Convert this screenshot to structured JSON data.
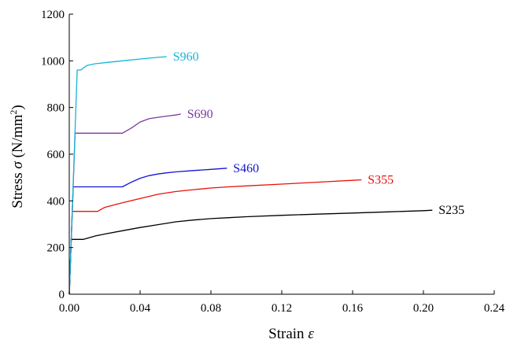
{
  "chart_data": {
    "type": "line",
    "title": "",
    "xlabel": "Strain",
    "xlabel_symbol": "ε",
    "ylabel": "Stress",
    "ylabel_symbol": "σ",
    "ylabel_unit_prefix": "(N/mm",
    "ylabel_unit_sup": "2",
    "ylabel_unit_suffix": ")",
    "xlim": [
      0,
      0.24
    ],
    "ylim": [
      0,
      1200
    ],
    "x_ticks": [
      "0.00",
      "0.04",
      "0.08",
      "0.12",
      "0.16",
      "0.20",
      "0.24"
    ],
    "y_ticks": [
      "0",
      "200",
      "400",
      "600",
      "800",
      "1000",
      "1200"
    ],
    "grid": false,
    "legend": "labels at end of curves",
    "series": [
      {
        "name": "S235",
        "color": "#000000",
        "x": [
          0,
          0.0011,
          0.002,
          0.008,
          0.015,
          0.02,
          0.03,
          0.04,
          0.05,
          0.06,
          0.07,
          0.08,
          0.09,
          0.1,
          0.12,
          0.14,
          0.16,
          0.18,
          0.2,
          0.205
        ],
        "y": [
          0,
          235,
          235,
          235,
          250,
          258,
          272,
          286,
          298,
          310,
          318,
          324,
          328,
          332,
          338,
          343,
          348,
          353,
          358,
          360
        ]
      },
      {
        "name": "S355",
        "color": "#e8120c",
        "x": [
          0,
          0.0017,
          0.003,
          0.016,
          0.02,
          0.03,
          0.04,
          0.05,
          0.06,
          0.07,
          0.08,
          0.09,
          0.1,
          0.12,
          0.14,
          0.16,
          0.165
        ],
        "y": [
          0,
          355,
          355,
          355,
          372,
          392,
          410,
          428,
          440,
          448,
          455,
          460,
          464,
          472,
          480,
          488,
          490
        ]
      },
      {
        "name": "S460",
        "color": "#1414d2",
        "x": [
          0,
          0.0022,
          0.003,
          0.03,
          0.035,
          0.04,
          0.045,
          0.05,
          0.055,
          0.06,
          0.07,
          0.08,
          0.089
        ],
        "y": [
          0,
          460,
          460,
          460,
          480,
          497,
          508,
          515,
          520,
          524,
          530,
          535,
          540
        ]
      },
      {
        "name": "S690",
        "color": "#7b3aa0",
        "x": [
          0,
          0.0033,
          0.004,
          0.03,
          0.035,
          0.04,
          0.045,
          0.05,
          0.055,
          0.06,
          0.063
        ],
        "y": [
          0,
          690,
          690,
          690,
          712,
          738,
          752,
          758,
          763,
          768,
          772
        ]
      },
      {
        "name": "S960",
        "color": "#18b4d8",
        "x": [
          0,
          0.0045,
          0.007,
          0.008,
          0.01,
          0.015,
          0.02,
          0.03,
          0.04,
          0.05,
          0.055
        ],
        "y": [
          0,
          960,
          962,
          970,
          980,
          988,
          992,
          1000,
          1008,
          1015,
          1018
        ]
      }
    ]
  }
}
